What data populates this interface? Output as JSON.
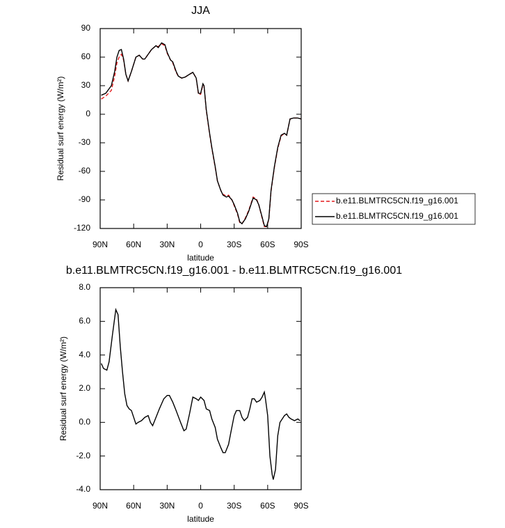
{
  "chart_data": [
    {
      "type": "line",
      "title": "JJA",
      "xlabel": "latitude",
      "ylabel": "Residual surf energy (W/m²)",
      "xlim": [
        90,
        -90
      ],
      "xticks": [
        {
          "value": 90,
          "label": "90N"
        },
        {
          "value": 60,
          "label": "60N"
        },
        {
          "value": 30,
          "label": "30N"
        },
        0,
        {
          "value": -30,
          "label": "30S"
        },
        {
          "value": -60,
          "label": "60S"
        },
        {
          "value": -90,
          "label": "90S"
        }
      ],
      "ylim": [
        -120,
        90
      ],
      "yticks": [
        -120,
        -90,
        -60,
        -30,
        0,
        30,
        60,
        90
      ],
      "legend": "right",
      "x": [
        89,
        85,
        80,
        77,
        75,
        73,
        71,
        69,
        67,
        65,
        62,
        58,
        55,
        52,
        50,
        47,
        44,
        40,
        38,
        35,
        32,
        30,
        27,
        25,
        22,
        20,
        17,
        14,
        10,
        7,
        4,
        2,
        0,
        -2,
        -3,
        -5,
        -8,
        -10,
        -13,
        -15,
        -18,
        -20,
        -23,
        -25,
        -28,
        -30,
        -33,
        -35,
        -37,
        -40,
        -43,
        -45,
        -47,
        -50,
        -52,
        -55,
        -57,
        -59,
        -61,
        -63,
        -66,
        -69,
        -72,
        -75,
        -77,
        -80,
        -83,
        -87,
        -90
      ],
      "series": [
        {
          "name": "b.e11.BLMTRC5CN.f19_g16.001",
          "color": "#e41a1c",
          "linestyle": "dashed",
          "values": [
            16,
            19,
            25,
            40,
            54,
            60,
            63,
            57,
            42,
            35,
            45,
            60,
            62,
            58,
            58,
            63,
            68,
            72,
            71,
            74,
            72,
            64,
            57,
            54,
            44,
            40,
            38,
            39,
            42,
            44,
            38,
            21,
            21,
            31,
            30,
            4,
            -21,
            -36,
            -56,
            -70,
            -80,
            -84,
            -86,
            -85,
            -90,
            -96,
            -105,
            -114,
            -115,
            -109,
            -101,
            -94,
            -87,
            -89,
            -95,
            -109,
            -118,
            -118,
            -111,
            -81,
            -56,
            -36,
            -23,
            -20,
            -22,
            -5,
            -4,
            -4,
            -5
          ]
        },
        {
          "name": "b.e11.BLMTRC5CN.f19_g16.001",
          "color": "#000000",
          "linestyle": "solid",
          "values": [
            20,
            22,
            30,
            45,
            60,
            67,
            68,
            58,
            42,
            35,
            45,
            60,
            62,
            58,
            58,
            63,
            68,
            72,
            70,
            75,
            73,
            65,
            57,
            55,
            45,
            40,
            38,
            39,
            42,
            44,
            38,
            22,
            22,
            32,
            30,
            5,
            -20,
            -35,
            -55,
            -70,
            -80,
            -85,
            -87,
            -86,
            -90,
            -95,
            -104,
            -113,
            -115,
            -110,
            -102,
            -95,
            -88,
            -90,
            -95,
            -108,
            -117,
            -118,
            -110,
            -80,
            -55,
            -35,
            -22,
            -20,
            -22,
            -5,
            -4,
            -4,
            -5
          ]
        }
      ]
    },
    {
      "type": "line",
      "title": "b.e11.BLMTRC5CN.f19_g16.001 - b.e11.BLMTRC5CN.f19_g16.001",
      "xlabel": "latitude",
      "ylabel": "Residual surf energy (W/m²)",
      "xlim": [
        90,
        -90
      ],
      "xticks": [
        {
          "value": 90,
          "label": "90N"
        },
        {
          "value": 60,
          "label": "60N"
        },
        {
          "value": 30,
          "label": "30N"
        },
        0,
        {
          "value": -30,
          "label": "30S"
        },
        {
          "value": -60,
          "label": "60S"
        },
        {
          "value": -90,
          "label": "90S"
        }
      ],
      "ylim": [
        -4,
        8
      ],
      "yticks": [
        {
          "value": -4,
          "label": "-4.0"
        },
        {
          "value": -2,
          "label": "-2.0"
        },
        {
          "value": 0,
          "label": "0.0"
        },
        {
          "value": 2,
          "label": "2.0"
        },
        {
          "value": 4,
          "label": "4.0"
        },
        {
          "value": 6,
          "label": "6.0"
        },
        {
          "value": 8,
          "label": "8.0"
        }
      ],
      "x": [
        89,
        87,
        84,
        82,
        79,
        76,
        74,
        72,
        70,
        68,
        66,
        64,
        62,
        60,
        58,
        56,
        53,
        50,
        47,
        45,
        43,
        40,
        37,
        33,
        30,
        28,
        25,
        22,
        18,
        15,
        13,
        10,
        7,
        4,
        2,
        0,
        -3,
        -5,
        -8,
        -10,
        -13,
        -15,
        -18,
        -20,
        -22,
        -25,
        -27,
        -30,
        -32,
        -35,
        -37,
        -39,
        -42,
        -44,
        -46,
        -48,
        -50,
        -53,
        -55,
        -57,
        -58,
        -60,
        -62,
        -64,
        -65,
        -67,
        -69,
        -71,
        -73,
        -75,
        -77,
        -79,
        -81,
        -84,
        -87,
        -89
      ],
      "series": [
        {
          "color": "#000000",
          "linestyle": "solid",
          "values": [
            3.5,
            3.2,
            3.1,
            3.6,
            5.2,
            6.7,
            6.4,
            4.5,
            3.0,
            1.7,
            1.0,
            0.8,
            0.7,
            0.3,
            -0.1,
            0.0,
            0.1,
            0.3,
            0.4,
            0.0,
            -0.2,
            0.3,
            0.8,
            1.4,
            1.6,
            1.6,
            1.2,
            0.7,
            0.0,
            -0.5,
            -0.4,
            0.5,
            1.5,
            1.4,
            1.3,
            1.5,
            1.3,
            0.8,
            0.7,
            0.2,
            -0.3,
            -1.0,
            -1.5,
            -1.8,
            -1.8,
            -1.3,
            -0.6,
            0.4,
            0.7,
            0.7,
            0.3,
            0.1,
            0.3,
            0.8,
            1.4,
            1.4,
            1.2,
            1.3,
            1.5,
            1.8,
            1.4,
            0.4,
            -2.0,
            -3.1,
            -3.4,
            -2.8,
            -0.8,
            0.0,
            0.2,
            0.4,
            0.5,
            0.3,
            0.2,
            0.1,
            0.2,
            0.1
          ]
        }
      ]
    }
  ]
}
